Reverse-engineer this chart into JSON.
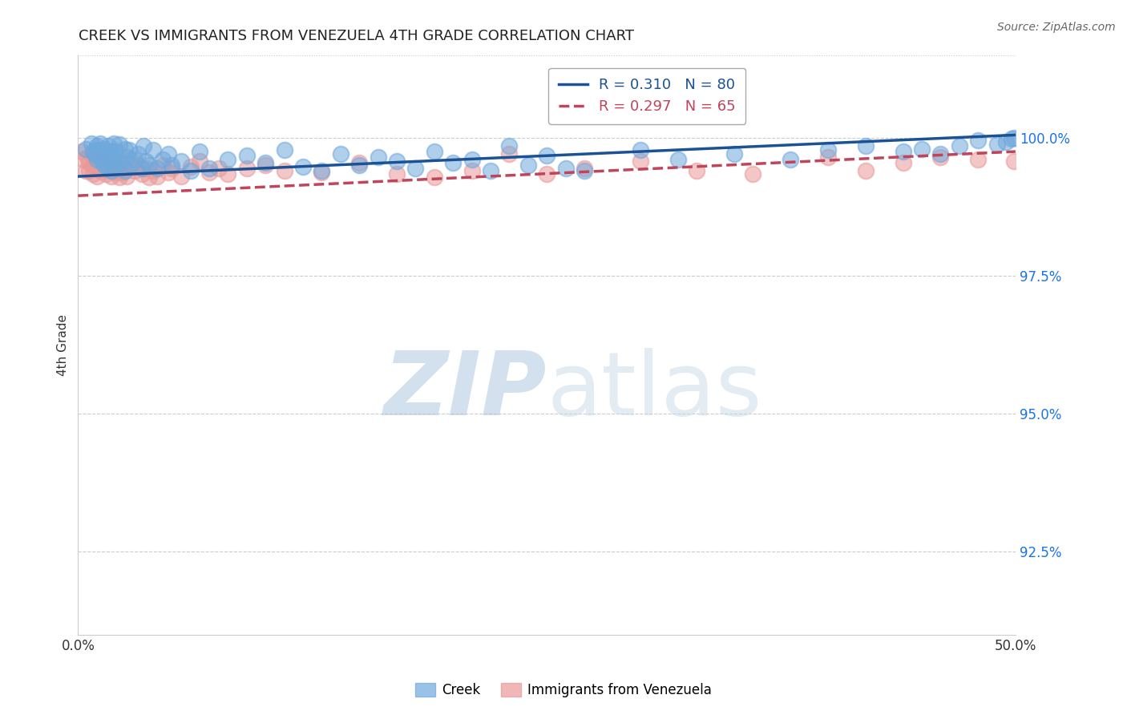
{
  "title": "CREEK VS IMMIGRANTS FROM VENEZUELA 4TH GRADE CORRELATION CHART",
  "source": "Source: ZipAtlas.com",
  "ylabel": "4th Grade",
  "xlim": [
    0.0,
    50.0
  ],
  "ylim": [
    91.0,
    101.5
  ],
  "xticks": [
    0.0,
    10.0,
    20.0,
    30.0,
    40.0,
    50.0
  ],
  "xticklabels": [
    "0.0%",
    "",
    "",
    "",
    "",
    "50.0%"
  ],
  "yticks": [
    92.5,
    95.0,
    97.5,
    100.0
  ],
  "yticklabels": [
    "92.5%",
    "95.0%",
    "97.5%",
    "100.0%"
  ],
  "legend_r1_val": "R = 0.310",
  "legend_r1_n": "N = 80",
  "legend_r2_val": "R = 0.297",
  "legend_r2_n": "N = 65",
  "creek_color": "#6fa8dc",
  "venezuela_color": "#ea9999",
  "creek_line_color": "#1a5295",
  "venezuela_line_color": "#c0445a",
  "background_color": "#ffffff",
  "creek_x": [
    0.4,
    0.7,
    0.8,
    0.9,
    1.0,
    1.0,
    1.1,
    1.2,
    1.2,
    1.3,
    1.4,
    1.4,
    1.5,
    1.6,
    1.6,
    1.7,
    1.8,
    1.8,
    1.9,
    1.9,
    2.0,
    2.0,
    2.1,
    2.2,
    2.3,
    2.5,
    2.5,
    2.6,
    2.7,
    2.8,
    3.0,
    3.2,
    3.4,
    3.5,
    3.6,
    3.8,
    4.0,
    4.2,
    4.5,
    4.8,
    5.0,
    5.5,
    6.0,
    6.5,
    7.0,
    8.0,
    9.0,
    10.0,
    11.0,
    12.0,
    13.0,
    14.0,
    15.0,
    16.0,
    17.0,
    18.0,
    19.0,
    20.0,
    21.0,
    22.0,
    23.0,
    24.0,
    25.0,
    26.0,
    27.0,
    30.0,
    32.0,
    35.0,
    38.0,
    40.0,
    42.0,
    44.0,
    45.0,
    46.0,
    47.0,
    48.0,
    49.0,
    49.5,
    49.8,
    49.9
  ],
  "creek_y": [
    99.8,
    99.9,
    99.75,
    99.7,
    99.85,
    99.6,
    99.78,
    99.9,
    99.65,
    99.55,
    99.8,
    99.5,
    99.7,
    99.85,
    99.45,
    99.62,
    99.75,
    99.4,
    99.9,
    99.6,
    99.75,
    99.45,
    99.6,
    99.88,
    99.55,
    99.8,
    99.4,
    99.65,
    99.78,
    99.5,
    99.6,
    99.7,
    99.45,
    99.85,
    99.58,
    99.5,
    99.78,
    99.45,
    99.6,
    99.7,
    99.5,
    99.58,
    99.4,
    99.75,
    99.45,
    99.6,
    99.68,
    99.55,
    99.78,
    99.48,
    99.4,
    99.7,
    99.5,
    99.65,
    99.58,
    99.45,
    99.75,
    99.55,
    99.6,
    99.4,
    99.85,
    99.5,
    99.68,
    99.45,
    99.4,
    99.78,
    99.6,
    99.7,
    99.6,
    99.78,
    99.85,
    99.75,
    99.8,
    99.7,
    99.85,
    99.95,
    99.88,
    99.92,
    99.98,
    100.0
  ],
  "venezuela_x": [
    0.2,
    0.3,
    0.4,
    0.5,
    0.6,
    0.6,
    0.7,
    0.8,
    0.8,
    0.9,
    1.0,
    1.0,
    1.1,
    1.2,
    1.3,
    1.4,
    1.5,
    1.6,
    1.7,
    1.8,
    1.9,
    2.0,
    2.1,
    2.2,
    2.3,
    2.4,
    2.5,
    2.6,
    2.8,
    3.0,
    3.2,
    3.4,
    3.6,
    3.8,
    4.0,
    4.2,
    4.5,
    4.8,
    5.0,
    5.5,
    6.0,
    6.5,
    7.0,
    7.5,
    8.0,
    9.0,
    10.0,
    11.0,
    13.0,
    15.0,
    17.0,
    19.0,
    21.0,
    23.0,
    25.0,
    27.0,
    30.0,
    33.0,
    36.0,
    40.0,
    42.0,
    44.0,
    46.0,
    48.0,
    49.9
  ],
  "venezuela_y": [
    99.75,
    99.6,
    99.4,
    99.65,
    99.55,
    99.4,
    99.7,
    99.5,
    99.35,
    99.58,
    99.45,
    99.3,
    99.6,
    99.4,
    99.68,
    99.45,
    99.35,
    99.58,
    99.4,
    99.3,
    99.55,
    99.38,
    99.45,
    99.28,
    99.5,
    99.38,
    99.45,
    99.3,
    99.6,
    99.4,
    99.5,
    99.35,
    99.45,
    99.28,
    99.4,
    99.3,
    99.5,
    99.38,
    99.45,
    99.3,
    99.48,
    99.58,
    99.38,
    99.45,
    99.35,
    99.45,
    99.5,
    99.4,
    99.38,
    99.55,
    99.35,
    99.28,
    99.4,
    99.7,
    99.35,
    99.45,
    99.58,
    99.4,
    99.35,
    99.65,
    99.4,
    99.55,
    99.65,
    99.6,
    99.58
  ],
  "creek_trendline_x": [
    0.0,
    50.0
  ],
  "creek_trendline_y": [
    99.3,
    100.05
  ],
  "venezuela_trendline_x": [
    0.0,
    50.0
  ],
  "venezuela_trendline_y": [
    98.95,
    99.75
  ]
}
